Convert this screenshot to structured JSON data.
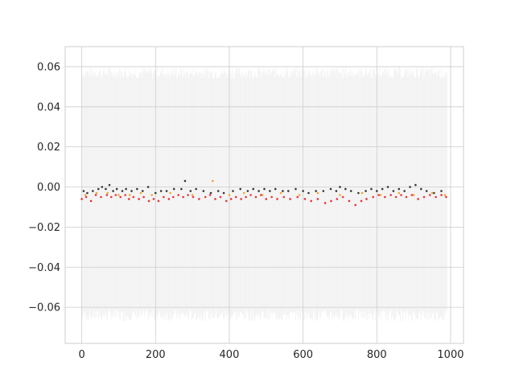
{
  "chart_data": {
    "type": "scatter",
    "title": "",
    "xlabel": "",
    "ylabel": "",
    "xlim": [
      -45,
      1035
    ],
    "ylim": [
      -0.078,
      0.07
    ],
    "x_ticks": [
      0,
      200,
      400,
      600,
      800,
      1000
    ],
    "x_tick_labels": [
      "0",
      "200",
      "400",
      "600",
      "800",
      "1000"
    ],
    "y_ticks": [
      -0.06,
      -0.04,
      -0.02,
      0.0,
      0.02,
      0.04,
      0.06
    ],
    "y_tick_labels": [
      "−0.06",
      "−0.04",
      "−0.02",
      "0.00",
      "0.02",
      "0.04",
      "0.06"
    ],
    "grid": true,
    "legend": "none",
    "band": {
      "color": "#e6e6e6",
      "x_range": [
        0,
        990
      ],
      "upper_approx": 0.057,
      "lower_approx": -0.064,
      "description_of_fill": "thin vertical interval lines per sample"
    },
    "series": [
      {
        "color": "#333333",
        "points": [
          [
            5,
            -0.002
          ],
          [
            15,
            -0.003
          ],
          [
            30,
            -0.002
          ],
          [
            45,
            -0.001
          ],
          [
            55,
            0.0
          ],
          [
            65,
            -0.001
          ],
          [
            75,
            0.001
          ],
          [
            85,
            -0.002
          ],
          [
            95,
            -0.001
          ],
          [
            110,
            -0.002
          ],
          [
            120,
            -0.001
          ],
          [
            135,
            -0.002
          ],
          [
            150,
            -0.001
          ],
          [
            165,
            -0.002
          ],
          [
            180,
            0.0
          ],
          [
            200,
            -0.003
          ],
          [
            215,
            -0.002
          ],
          [
            230,
            -0.002
          ],
          [
            250,
            -0.001
          ],
          [
            270,
            -0.001
          ],
          [
            280,
            0.003
          ],
          [
            295,
            -0.002
          ],
          [
            310,
            -0.001
          ],
          [
            330,
            -0.002
          ],
          [
            350,
            -0.003
          ],
          [
            370,
            -0.002
          ],
          [
            385,
            -0.003
          ],
          [
            410,
            -0.002
          ],
          [
            430,
            -0.001
          ],
          [
            450,
            -0.002
          ],
          [
            465,
            -0.001
          ],
          [
            480,
            -0.002
          ],
          [
            495,
            -0.001
          ],
          [
            510,
            -0.002
          ],
          [
            525,
            -0.001
          ],
          [
            545,
            -0.002
          ],
          [
            560,
            -0.002
          ],
          [
            580,
            -0.001
          ],
          [
            600,
            -0.002
          ],
          [
            615,
            -0.003
          ],
          [
            635,
            -0.002
          ],
          [
            655,
            -0.002
          ],
          [
            675,
            -0.001
          ],
          [
            690,
            -0.002
          ],
          [
            700,
            0.0
          ],
          [
            715,
            -0.001
          ],
          [
            730,
            -0.002
          ],
          [
            750,
            -0.003
          ],
          [
            770,
            -0.002
          ],
          [
            785,
            -0.001
          ],
          [
            800,
            -0.002
          ],
          [
            815,
            -0.001
          ],
          [
            830,
            0.0
          ],
          [
            845,
            -0.002
          ],
          [
            860,
            -0.001
          ],
          [
            875,
            -0.002
          ],
          [
            890,
            0.0
          ],
          [
            905,
            0.001
          ],
          [
            920,
            -0.001
          ],
          [
            935,
            -0.002
          ],
          [
            955,
            -0.003
          ],
          [
            975,
            -0.002
          ]
        ]
      },
      {
        "color": "#f2a42c",
        "points": [
          [
            10,
            -0.004
          ],
          [
            40,
            -0.003
          ],
          [
            70,
            -0.003
          ],
          [
            100,
            -0.004
          ],
          [
            130,
            -0.004
          ],
          [
            160,
            -0.003
          ],
          [
            190,
            -0.004
          ],
          [
            240,
            -0.003
          ],
          [
            300,
            -0.004
          ],
          [
            355,
            0.003
          ],
          [
            400,
            -0.004
          ],
          [
            440,
            -0.003
          ],
          [
            490,
            -0.004
          ],
          [
            540,
            -0.003
          ],
          [
            590,
            -0.004
          ],
          [
            640,
            -0.003
          ],
          [
            700,
            -0.004
          ],
          [
            760,
            -0.003
          ],
          [
            810,
            -0.004
          ],
          [
            860,
            -0.003
          ],
          [
            900,
            -0.004
          ],
          [
            950,
            -0.003
          ],
          [
            985,
            -0.004
          ]
        ]
      },
      {
        "color": "#e8343a",
        "points": [
          [
            0,
            -0.006
          ],
          [
            12,
            -0.005
          ],
          [
            25,
            -0.007
          ],
          [
            38,
            -0.004
          ],
          [
            52,
            -0.005
          ],
          [
            68,
            -0.004
          ],
          [
            80,
            -0.005
          ],
          [
            92,
            -0.004
          ],
          [
            105,
            -0.005
          ],
          [
            118,
            -0.004
          ],
          [
            128,
            -0.006
          ],
          [
            140,
            -0.005
          ],
          [
            155,
            -0.006
          ],
          [
            168,
            -0.005
          ],
          [
            182,
            -0.007
          ],
          [
            195,
            -0.006
          ],
          [
            208,
            -0.007
          ],
          [
            222,
            -0.005
          ],
          [
            236,
            -0.006
          ],
          [
            248,
            -0.005
          ],
          [
            262,
            -0.004
          ],
          [
            275,
            -0.005
          ],
          [
            288,
            -0.004
          ],
          [
            302,
            -0.005
          ],
          [
            318,
            -0.006
          ],
          [
            335,
            -0.005
          ],
          [
            348,
            -0.004
          ],
          [
            362,
            -0.006
          ],
          [
            376,
            -0.005
          ],
          [
            392,
            -0.007
          ],
          [
            405,
            -0.006
          ],
          [
            418,
            -0.005
          ],
          [
            432,
            -0.006
          ],
          [
            445,
            -0.005
          ],
          [
            458,
            -0.004
          ],
          [
            472,
            -0.005
          ],
          [
            486,
            -0.004
          ],
          [
            500,
            -0.006
          ],
          [
            515,
            -0.005
          ],
          [
            530,
            -0.006
          ],
          [
            548,
            -0.005
          ],
          [
            565,
            -0.006
          ],
          [
            585,
            -0.005
          ],
          [
            605,
            -0.006
          ],
          [
            622,
            -0.007
          ],
          [
            640,
            -0.006
          ],
          [
            660,
            -0.008
          ],
          [
            676,
            -0.007
          ],
          [
            692,
            -0.006
          ],
          [
            708,
            -0.005
          ],
          [
            725,
            -0.007
          ],
          [
            742,
            -0.009
          ],
          [
            758,
            -0.007
          ],
          [
            772,
            -0.006
          ],
          [
            790,
            -0.005
          ],
          [
            805,
            -0.004
          ],
          [
            822,
            -0.005
          ],
          [
            838,
            -0.004
          ],
          [
            852,
            -0.005
          ],
          [
            866,
            -0.004
          ],
          [
            880,
            -0.005
          ],
          [
            895,
            -0.004
          ],
          [
            912,
            -0.006
          ],
          [
            928,
            -0.005
          ],
          [
            944,
            -0.004
          ],
          [
            960,
            -0.005
          ],
          [
            975,
            -0.004
          ],
          [
            988,
            -0.005
          ]
        ]
      }
    ]
  }
}
